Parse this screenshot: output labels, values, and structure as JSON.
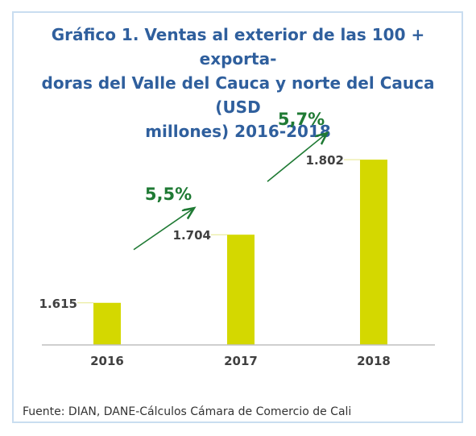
{
  "title_lines": [
    "Gráfico 1. Ventas al exterior de las 100 + exporta-",
    "doras del Valle del Cauca y norte del Cauca (USD",
    "millones) 2016-2018"
  ],
  "source": "Fuente: DIAN, DANE-Cálculos Cámara de Comercio de Cali",
  "colors": {
    "bar": "#d4d800",
    "title": "#2f5f9d",
    "growth": "#1f7a34",
    "axis": "#bfbfbf",
    "frame": "#c9ddf0",
    "label": "#404040"
  },
  "chart_data": {
    "type": "bar",
    "title": "Gráfico 1. Ventas al exterior de las 100 + exportadoras del Valle del Cauca y norte del Cauca (USD millones) 2016-2018",
    "categories": [
      "2016",
      "2017",
      "2018"
    ],
    "values": [
      1615,
      1704,
      1802
    ],
    "value_labels": [
      "1.615",
      "1.704",
      "1.802"
    ],
    "growth_labels": [
      "5,5%",
      "5,7%"
    ],
    "xlabel": "",
    "ylabel": "",
    "ylim": [
      1560,
      1810
    ],
    "grid": false,
    "legend": "none"
  }
}
